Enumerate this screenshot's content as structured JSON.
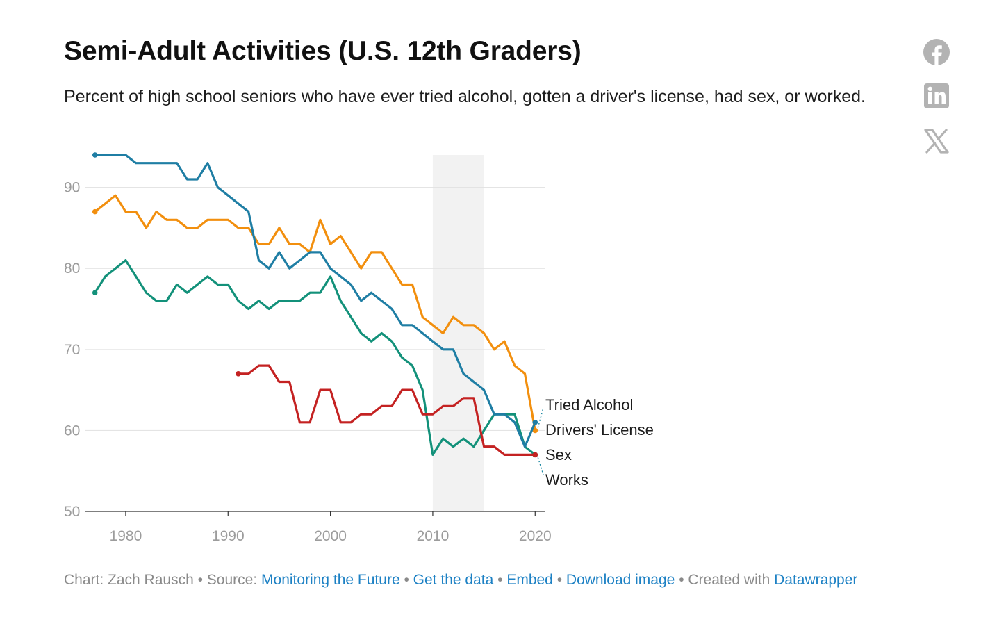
{
  "title": "Semi-Adult Activities (U.S. 12th Graders)",
  "subtitle": "Percent of high school seniors who have ever tried alcohol, gotten a driver's license, had sex, or worked.",
  "share": {
    "icons": [
      "facebook-icon",
      "linkedin-icon",
      "x-icon"
    ],
    "icon_color": "#b3b3b3"
  },
  "footer": {
    "chart_label": "Chart: Zach Rausch",
    "source_label": "Source:",
    "source_link": "Monitoring the Future",
    "get_data": "Get the data",
    "embed": "Embed",
    "download": "Download image",
    "created_label": "Created with",
    "created_link": "Datawrapper",
    "separator": "•",
    "link_color": "#1d81c4"
  },
  "chart_data": {
    "type": "line",
    "title": "Semi-Adult Activities (U.S. 12th Graders)",
    "xlabel": "",
    "ylabel": "",
    "xlim": [
      1976,
      2021
    ],
    "ylim": [
      50,
      94
    ],
    "x_ticks": [
      1980,
      1990,
      2000,
      2010,
      2020
    ],
    "y_ticks": [
      50,
      60,
      70,
      80,
      90
    ],
    "grid": true,
    "highlight_band": [
      2010,
      2015
    ],
    "band_color": "#f2f2f2",
    "series": [
      {
        "name": "Tried Alcohol",
        "color": "#f28f0e",
        "x": [
          1977,
          1978,
          1979,
          1980,
          1981,
          1982,
          1983,
          1984,
          1985,
          1986,
          1987,
          1988,
          1989,
          1990,
          1991,
          1992,
          1993,
          1994,
          1995,
          1996,
          1997,
          1998,
          1999,
          2000,
          2001,
          2002,
          2003,
          2004,
          2005,
          2006,
          2007,
          2008,
          2009,
          2010,
          2011,
          2012,
          2013,
          2014,
          2015,
          2016,
          2017,
          2018,
          2019,
          2020
        ],
        "values": [
          87,
          88,
          89,
          87,
          87,
          85,
          87,
          86,
          86,
          85,
          85,
          86,
          86,
          86,
          85,
          85,
          83,
          83,
          85,
          83,
          83,
          82,
          86,
          83,
          84,
          82,
          80,
          82,
          82,
          80,
          78,
          78,
          74,
          73,
          72,
          74,
          73,
          73,
          72,
          70,
          71,
          68,
          67,
          60
        ]
      },
      {
        "name": "Drivers' License",
        "color": "#1f7ea4",
        "x": [
          1977,
          1978,
          1979,
          1980,
          1981,
          1982,
          1983,
          1984,
          1985,
          1986,
          1987,
          1988,
          1989,
          1990,
          1991,
          1992,
          1993,
          1994,
          1995,
          1996,
          1997,
          1998,
          1999,
          2000,
          2001,
          2002,
          2003,
          2004,
          2005,
          2006,
          2007,
          2008,
          2009,
          2010,
          2011,
          2012,
          2013,
          2014,
          2015,
          2016,
          2017,
          2018,
          2019,
          2020
        ],
        "values": [
          94,
          94,
          94,
          94,
          93,
          93,
          93,
          93,
          93,
          91,
          91,
          93,
          90,
          89,
          88,
          87,
          81,
          80,
          82,
          80,
          81,
          82,
          82,
          80,
          79,
          78,
          76,
          77,
          76,
          75,
          73,
          73,
          72,
          71,
          70,
          70,
          67,
          66,
          65,
          62,
          62,
          61,
          58,
          61
        ]
      },
      {
        "name": "Sex",
        "color": "#c42222",
        "x": [
          1991,
          1992,
          1993,
          1994,
          1995,
          1996,
          1997,
          1998,
          1999,
          2000,
          2001,
          2002,
          2003,
          2004,
          2005,
          2006,
          2007,
          2008,
          2009,
          2010,
          2011,
          2012,
          2013,
          2014,
          2015,
          2016,
          2017,
          2018,
          2019,
          2020
        ],
        "values": [
          67,
          67,
          68,
          68,
          66,
          66,
          61,
          61,
          65,
          65,
          61,
          61,
          62,
          62,
          63,
          63,
          65,
          65,
          62,
          62,
          63,
          63,
          64,
          64,
          58,
          58,
          57,
          57,
          57,
          57
        ]
      },
      {
        "name": "Works",
        "color": "#13917a",
        "x": [
          1977,
          1978,
          1979,
          1980,
          1981,
          1982,
          1983,
          1984,
          1985,
          1986,
          1987,
          1988,
          1989,
          1990,
          1991,
          1992,
          1993,
          1994,
          1995,
          1996,
          1997,
          1998,
          1999,
          2000,
          2001,
          2002,
          2003,
          2004,
          2005,
          2006,
          2007,
          2008,
          2009,
          2010,
          2011,
          2012,
          2013,
          2014,
          2015,
          2016,
          2017,
          2018,
          2019,
          2020
        ],
        "values": [
          77,
          79,
          80,
          81,
          79,
          77,
          76,
          76,
          78,
          77,
          78,
          79,
          78,
          78,
          76,
          75,
          76,
          75,
          76,
          76,
          76,
          77,
          77,
          79,
          76,
          74,
          72,
          71,
          72,
          71,
          69,
          68,
          65,
          57,
          59,
          58,
          59,
          58,
          60,
          62,
          62,
          62,
          58,
          57
        ]
      }
    ]
  }
}
